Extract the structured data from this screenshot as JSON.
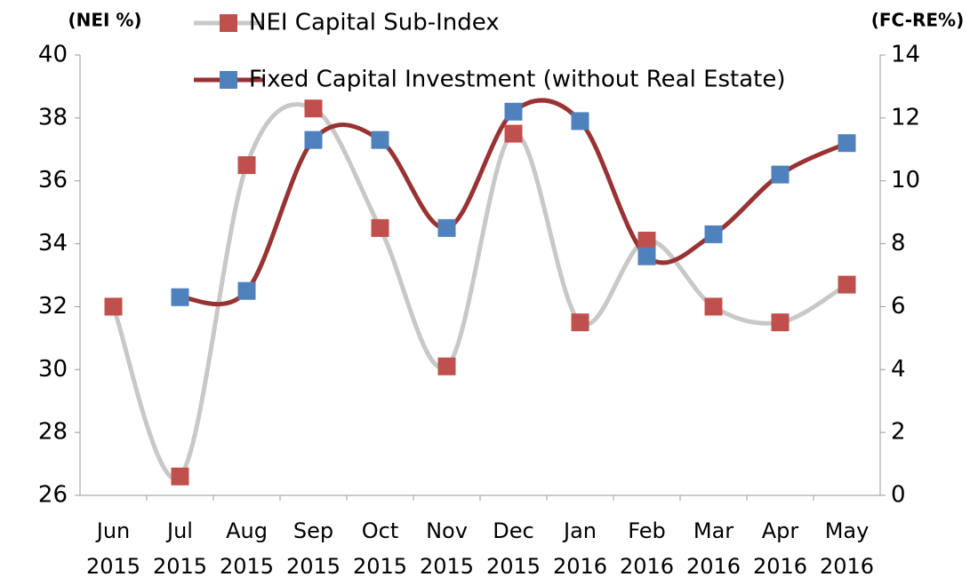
{
  "chart_data": {
    "type": "line",
    "y_label": "(NEI %)",
    "y2_label": "(FC-RE%)",
    "categories": [
      "Jun 2015",
      "Jul 2015",
      "Aug 2015",
      "Sep 2015",
      "Oct 2015",
      "Nov 2015",
      "Dec 2015",
      "Jan 2016",
      "Feb 2016",
      "Mar 2016",
      "Apr 2016",
      "May 2016"
    ],
    "series": [
      {
        "name": "NEI Capital Sub-Index",
        "color": "#c8c8c8",
        "marker_color": "#c0504d",
        "axis": "y",
        "values": [
          32.0,
          26.6,
          36.5,
          38.3,
          34.5,
          30.1,
          37.5,
          31.5,
          34.1,
          32.0,
          31.5,
          32.7
        ]
      },
      {
        "name": "Fixed Capital Investment (without Real Estate)",
        "color": "#993333",
        "marker_color": "#4f81bd",
        "axis": "y2",
        "values": [
          null,
          6.3,
          6.5,
          11.3,
          11.3,
          8.5,
          12.2,
          11.9,
          7.6,
          8.3,
          10.2,
          11.2
        ]
      }
    ],
    "ylim": [
      26,
      40
    ],
    "yticks": [
      26,
      28,
      30,
      32,
      34,
      36,
      38,
      40
    ],
    "y2lim": [
      0,
      14
    ],
    "y2ticks": [
      0,
      2,
      4,
      6,
      8,
      10,
      12,
      14
    ],
    "smooth": true,
    "grid": false
  }
}
